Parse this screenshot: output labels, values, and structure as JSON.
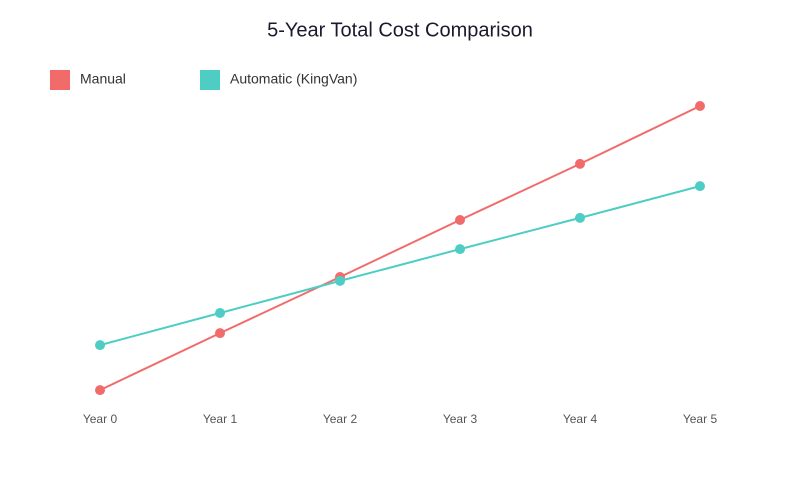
{
  "chart_data": {
    "type": "line",
    "title": "5-Year Total Cost Comparison",
    "categories": [
      "Year 0",
      "Year 1",
      "Year 2",
      "Year 3",
      "Year 4",
      "Year 5"
    ],
    "series": [
      {
        "name": "Manual",
        "color": "#f26b6b",
        "values": [
          3.3,
          22.3,
          41,
          60,
          78.7,
          98
        ]
      },
      {
        "name": "Automatic (KingVan)",
        "color": "#4ecdc4",
        "values": [
          18.3,
          29,
          39.7,
          50.3,
          60.7,
          71.3
        ]
      }
    ],
    "ylim": [
      0,
      100
    ],
    "grid": false,
    "legend": "top-left"
  }
}
